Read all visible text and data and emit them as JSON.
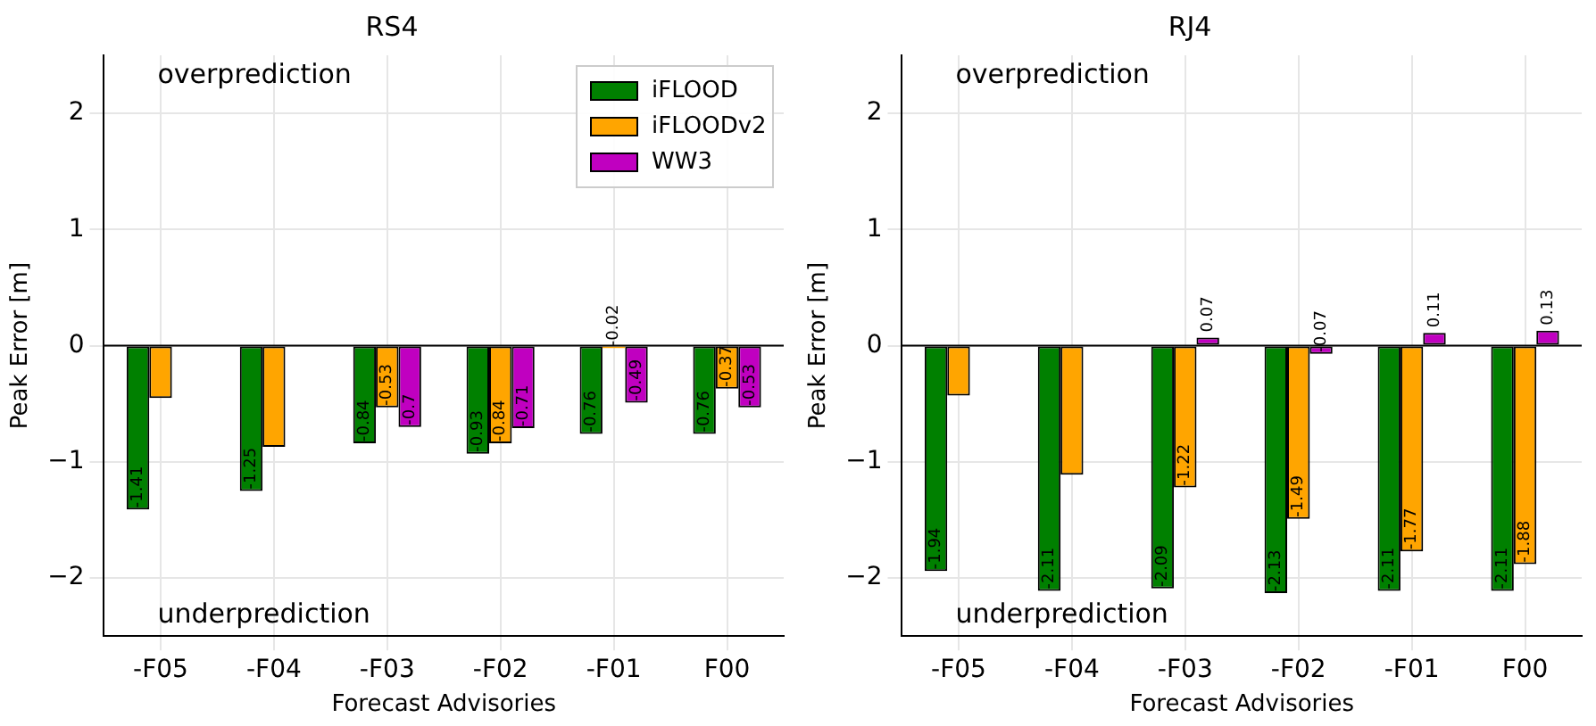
{
  "chart_data": [
    {
      "type": "bar",
      "title": "RS4",
      "xlabel": "Forecast Advisories",
      "ylabel": "Peak Error [m]",
      "categories": [
        "-F05",
        "-F04",
        "-F03",
        "-F02",
        "-F01",
        "F00"
      ],
      "series": [
        {
          "name": "iFLOOD",
          "color": "#008000",
          "values": [
            -1.41,
            -1.25,
            -0.84,
            -0.93,
            -0.76,
            -0.76
          ],
          "value_labels": [
            "-1.41",
            "-1.25",
            "-0.84",
            "-0.93",
            "-0.76",
            "-0.76"
          ]
        },
        {
          "name": "iFLOODv2",
          "color": "#ffa500",
          "values": [
            -0.45,
            -0.87,
            -0.53,
            -0.84,
            -0.02,
            -0.37
          ],
          "value_labels": [
            null,
            null,
            "-0.53",
            "-0.84",
            "-0.02",
            "-0.37"
          ]
        },
        {
          "name": "WW3",
          "color": "#c000c0",
          "values": [
            null,
            null,
            -0.7,
            -0.71,
            -0.49,
            -0.53
          ],
          "value_labels": [
            null,
            null,
            "-0.7",
            "-0.71",
            "-0.49",
            "-0.53"
          ]
        }
      ],
      "ylim": [
        -2.5,
        2.5
      ],
      "yticks": [
        -2,
        -1,
        0,
        1,
        2
      ],
      "grid": true,
      "legend": "top right",
      "ref_lines": [
        {
          "axis": "y",
          "value": 0,
          "color": "#000000"
        }
      ],
      "annotations": [
        "overprediction",
        "underprediction"
      ]
    },
    {
      "type": "bar",
      "title": "RJ4",
      "xlabel": "Forecast Advisories",
      "ylabel": "Peak Error [m]",
      "categories": [
        "-F05",
        "-F04",
        "-F03",
        "-F02",
        "-F01",
        "F00"
      ],
      "series": [
        {
          "color": "#008000",
          "values": [
            -1.94,
            -2.11,
            -2.09,
            -2.13,
            -2.11,
            -2.11
          ],
          "value_labels": [
            "-1.94",
            "-2.11",
            "-2.09",
            "-2.13",
            "-2.11",
            "-2.11"
          ]
        },
        {
          "color": "#ffa500",
          "values": [
            -0.43,
            -1.11,
            -1.22,
            -1.49,
            -1.77,
            -1.88
          ],
          "value_labels": [
            null,
            null,
            "-1.22",
            "-1.49",
            "-1.77",
            "-1.88"
          ]
        },
        {
          "color": "#c000c0",
          "values": [
            null,
            null,
            0.07,
            -0.07,
            0.11,
            0.13
          ],
          "value_labels": [
            null,
            null,
            "0.07",
            "-0.07",
            "0.11",
            "0.13"
          ]
        }
      ],
      "ylim": [
        -2.5,
        2.5
      ],
      "yticks": [
        -2,
        -1,
        0,
        1,
        2
      ],
      "grid": true,
      "ref_lines": [
        {
          "axis": "y",
          "value": 0,
          "color": "#000000"
        }
      ],
      "annotations": [
        "overprediction",
        "underprediction"
      ]
    }
  ]
}
